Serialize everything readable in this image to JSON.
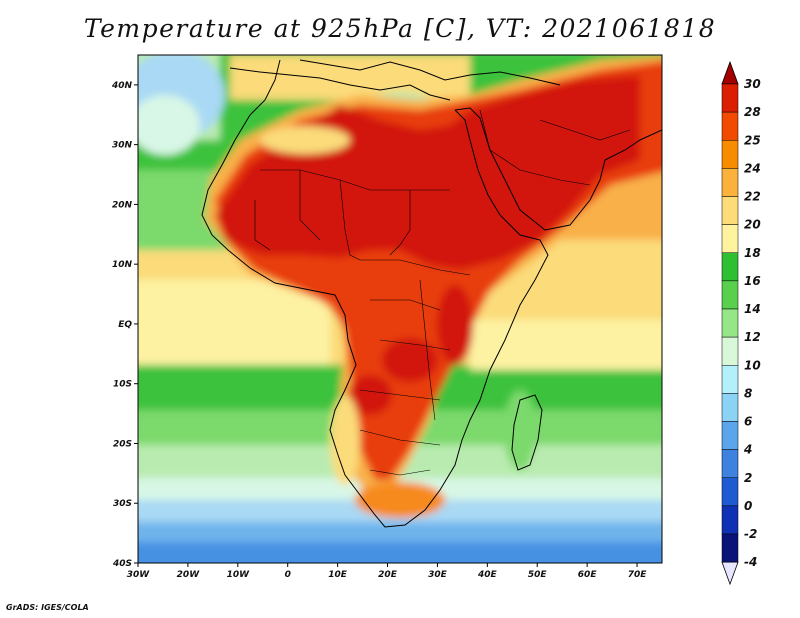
{
  "title": "Temperature at 925hPa [C], VT: 2021061818",
  "footer": "GrADS: IGES/COLA",
  "axes": {
    "lon_ticks": [
      "30W",
      "20W",
      "10W",
      "0",
      "10E",
      "20E",
      "30E",
      "40E",
      "50E",
      "60E",
      "70E"
    ],
    "lat_ticks": [
      "40N",
      "30N",
      "20N",
      "10N",
      "EQ",
      "10S",
      "20S",
      "30S",
      "40S"
    ],
    "lon_range": [
      -30,
      75
    ],
    "lat_range": [
      -40,
      45
    ]
  },
  "colorbar": {
    "labels": [
      "30",
      "28",
      "25",
      "24",
      "22",
      "20",
      "18",
      "16",
      "14",
      "12",
      "10",
      "8",
      "6",
      "4",
      "2",
      "0",
      "-2",
      "-4"
    ],
    "colors": [
      "#a50000",
      "#dc1e00",
      "#f04b00",
      "#f88c00",
      "#fbb23c",
      "#fcdc78",
      "#fff3a0",
      "#2ec030",
      "#58d04e",
      "#96e688",
      "#d8f8d8",
      "#b4f0fa",
      "#8cd2f5",
      "#5aa5ec",
      "#3c82de",
      "#1e5ad2",
      "#0f32b4",
      "#0a1478",
      "#e6e6ff"
    ]
  },
  "palette": {
    "red_dark": "#d2190f",
    "red": "#e83c0a",
    "orange": "#f78a1e",
    "orange_light": "#f9b04a",
    "yellow": "#fbdb7a",
    "yellow_pale": "#fdf2a2",
    "green": "#3cc23c",
    "green_light": "#7bd96c",
    "green_pale": "#b9ebb0",
    "cyan_pale": "#d8f7e6",
    "blue_pale": "#a9d9f4",
    "blue": "#6fb4ec",
    "blue_mid": "#4791e2"
  }
}
